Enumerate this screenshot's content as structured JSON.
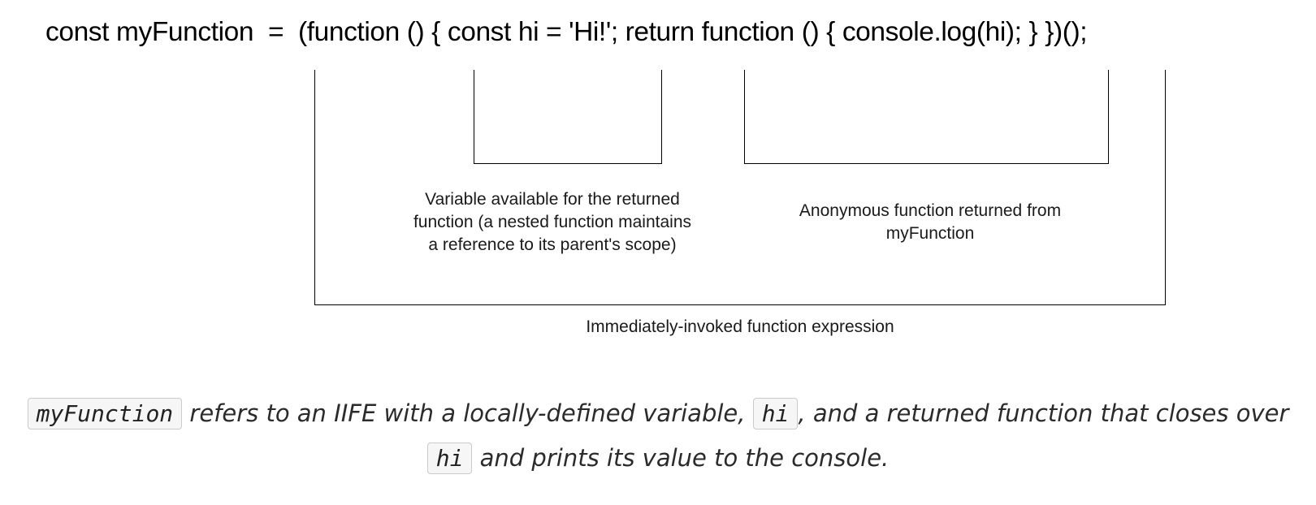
{
  "code": {
    "declaration": "const myFunction",
    "equals": "=",
    "expression": "(function () { const hi = 'Hi!'; return function () { console.log(hi); } })();"
  },
  "labels": {
    "variable": [
      "Variable available for the returned",
      "function (a nested function maintains",
      "a reference to its parent's scope)"
    ],
    "anonymous": [
      "Anonymous function returned from",
      "myFunction"
    ],
    "iife": "Immediately-invoked function expression"
  },
  "caption": {
    "code1": "myFunction",
    "text1": " refers to an IIFE with a locally-defined variable, ",
    "code2": "hi",
    "text2": ", and a returned function that closes over ",
    "code3": "hi",
    "text3": " and prints its value to the console."
  }
}
